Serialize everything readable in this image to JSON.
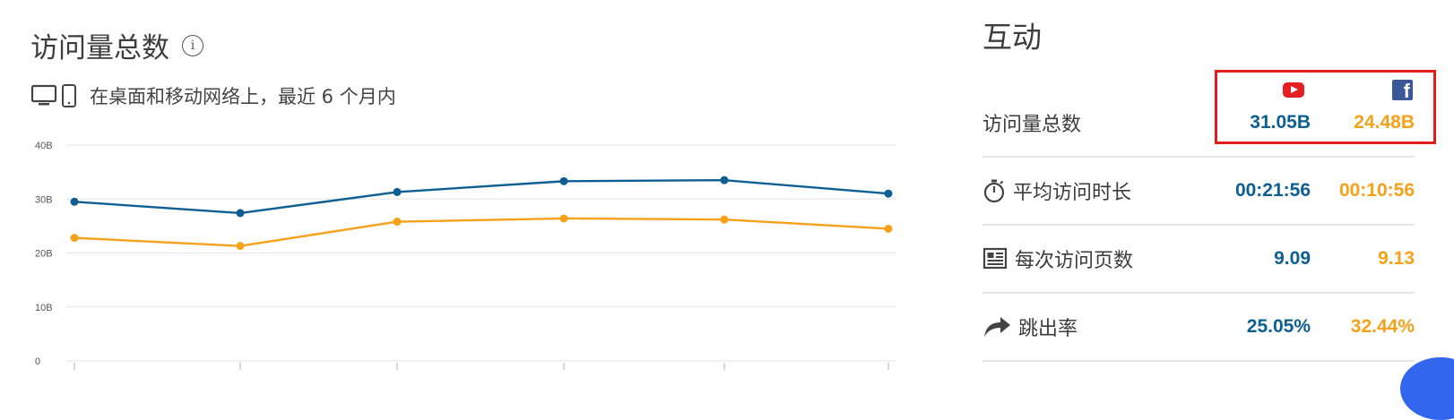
{
  "left_panel": {
    "title": "访问量总数",
    "subtitle": "在桌面和移动网络上，最近 6 个月内"
  },
  "chart_data": {
    "type": "line",
    "y_ticks": [
      "40B",
      "30B",
      "20B",
      "10B",
      "0"
    ],
    "ylim": [
      0,
      40
    ],
    "x_count": 6,
    "grid": true,
    "legend": "none",
    "series": [
      {
        "values": [
          29.5,
          27.4,
          31.3,
          33.3,
          33.5,
          31.0
        ],
        "color": "#0d5f93"
      },
      {
        "values": [
          22.8,
          21.3,
          25.8,
          26.4,
          26.2,
          24.5
        ],
        "color": "#f7a11a"
      }
    ]
  },
  "right_panel": {
    "title": "互动",
    "sites": [
      {
        "icon": "youtube-icon",
        "color": "#e41e22"
      },
      {
        "icon": "facebook-icon",
        "color": "#3b5998"
      }
    ],
    "rows": [
      {
        "label": "访问量总数",
        "icon": "",
        "yt": "31.05B",
        "fb": "24.48B"
      },
      {
        "label": "平均访问时长",
        "icon": "stopwatch-icon",
        "yt": "00:21:56",
        "fb": "00:10:56"
      },
      {
        "label": "每次访问页数",
        "icon": "pages-icon",
        "yt": "9.09",
        "fb": "9.13"
      },
      {
        "label": "跳出率",
        "icon": "bounce-arrow-icon",
        "yt": "25.05%",
        "fb": "32.44%"
      }
    ]
  }
}
